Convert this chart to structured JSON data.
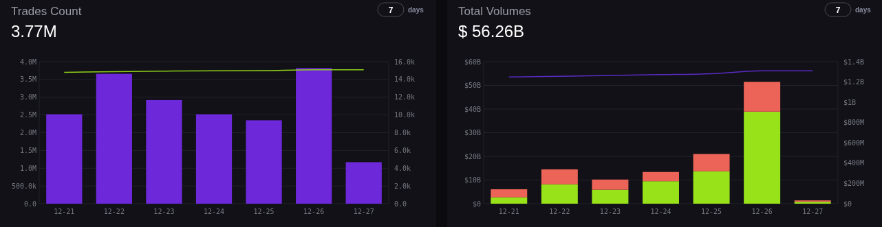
{
  "chart_data": [
    {
      "type": "bar",
      "title": "Trades Count",
      "subtitle": "3.77M",
      "annotations": [
        "7",
        "days"
      ],
      "categories": [
        "12-21",
        "12-22",
        "12-23",
        "12-24",
        "12-25",
        "12-26",
        "12-27"
      ],
      "series": [
        {
          "color": "#6c28d9",
          "values": [
            2520000,
            3660000,
            2920000,
            2520000,
            2350000,
            3820000,
            1170000
          ]
        },
        {
          "type": "line",
          "axis": "y2",
          "color": "#8fd11a",
          "values": [
            14810,
            14880,
            14940,
            14970,
            15000,
            15090,
            15090
          ]
        }
      ],
      "ylim": [
        0,
        4000000
      ],
      "yticks": [
        {
          "value": 0,
          "label": "0.0"
        },
        {
          "value": 500000,
          "label": "500.0k"
        },
        {
          "value": 1000000,
          "label": "1.0M"
        },
        {
          "value": 1500000,
          "label": "1.5M"
        },
        {
          "value": 2000000,
          "label": "2.0M"
        },
        {
          "value": 2500000,
          "label": "2.5M"
        },
        {
          "value": 3000000,
          "label": "3.0M"
        },
        {
          "value": 3500000,
          "label": "3.5M"
        },
        {
          "value": 4000000,
          "label": "4.0M"
        }
      ],
      "y2lim": [
        0,
        16000
      ],
      "y2ticks": [
        {
          "value": 0,
          "label": "0.0"
        },
        {
          "value": 2000,
          "label": "2.0k"
        },
        {
          "value": 4000,
          "label": "4.0k"
        },
        {
          "value": 6000,
          "label": "6.0k"
        },
        {
          "value": 8000,
          "label": "8.0k"
        },
        {
          "value": 10000,
          "label": "10.0k"
        },
        {
          "value": 12000,
          "label": "12.0k"
        },
        {
          "value": 14000,
          "label": "14.0k"
        },
        {
          "value": 16000,
          "label": "16.0k"
        }
      ],
      "grid": "y"
    },
    {
      "type": "bar",
      "stacked": true,
      "title": "Total Volumes",
      "subtitle": "$ 56.26B",
      "annotations": [
        "7",
        "days"
      ],
      "categories": [
        "12-21",
        "12-22",
        "12-23",
        "12-24",
        "12-25",
        "12-26",
        "12-27"
      ],
      "series": [
        {
          "color": "#98e21a",
          "values": [
            2700000000,
            8200000000,
            5900000000,
            9500000000,
            13700000000,
            38900000000,
            800000000
          ]
        },
        {
          "color": "#ec6357",
          "values": [
            3400000000,
            6300000000,
            4300000000,
            3900000000,
            7300000000,
            12600000000,
            600000000
          ]
        },
        {
          "type": "line",
          "axis": "y2",
          "color": "#5b2bc4",
          "values": [
            1249000000,
            1257000000,
            1265000000,
            1273000000,
            1282000000,
            1311000000,
            1311000000
          ]
        }
      ],
      "ylim": [
        0,
        60000000000
      ],
      "yticks": [
        {
          "value": 0,
          "label": "$0"
        },
        {
          "value": 10000000000,
          "label": "$10B"
        },
        {
          "value": 20000000000,
          "label": "$20B"
        },
        {
          "value": 30000000000,
          "label": "$30B"
        },
        {
          "value": 40000000000,
          "label": "$40B"
        },
        {
          "value": 50000000000,
          "label": "$50B"
        },
        {
          "value": 60000000000,
          "label": "$60B"
        }
      ],
      "y2lim": [
        0,
        1400000000
      ],
      "y2ticks": [
        {
          "value": 0,
          "label": "$0"
        },
        {
          "value": 200000000,
          "label": "$200M"
        },
        {
          "value": 400000000,
          "label": "$400M"
        },
        {
          "value": 600000000,
          "label": "$600M"
        },
        {
          "value": 800000000,
          "label": "$800M"
        },
        {
          "value": 1000000000,
          "label": "$1B"
        },
        {
          "value": 1200000000,
          "label": "$1.2B"
        },
        {
          "value": 1400000000,
          "label": "$1.4B"
        }
      ],
      "grid": "y"
    }
  ]
}
